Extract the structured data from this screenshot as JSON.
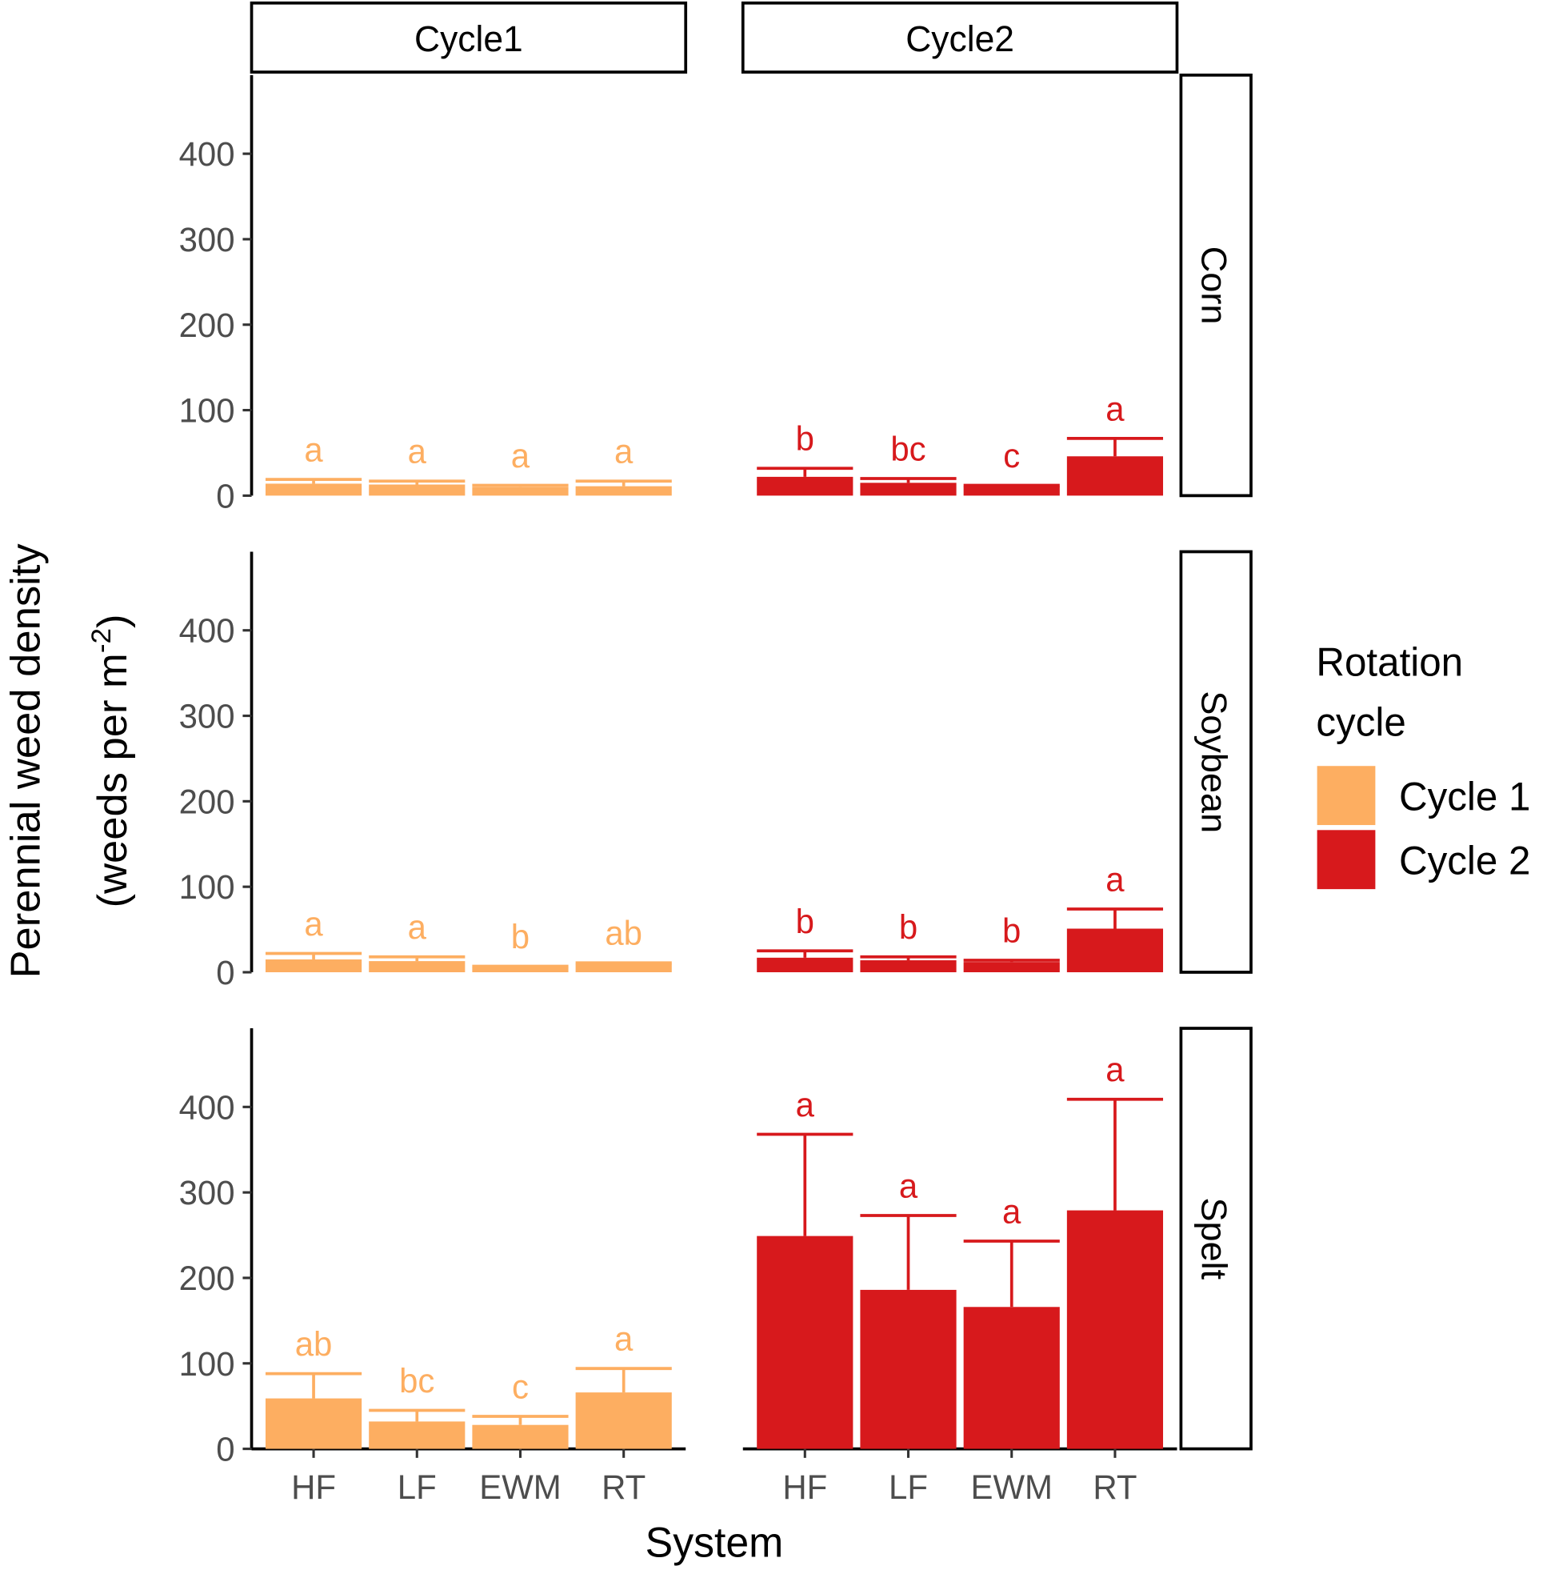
{
  "chart_data": {
    "type": "bar",
    "xlabel": "System",
    "ylabel_line1": "Perennial weed density",
    "ylabel_line2_prefix": "(weeds per m",
    "ylabel_sup": "-2",
    "ylabel_line2_suffix": ")",
    "ylim": [
      0,
      492
    ],
    "yticks": [
      "0",
      "100",
      "200",
      "300",
      "400"
    ],
    "categories": [
      "HF",
      "LF",
      "EWM",
      "RT"
    ],
    "col_facets": [
      "Cycle1",
      "Cycle2"
    ],
    "row_facets": [
      "Corn",
      "Soybean",
      "Spelt"
    ],
    "legend": {
      "title_line1": "Rotation",
      "title_line2": "cycle",
      "placement": "right",
      "items": [
        {
          "label": "Cycle 1",
          "color": "#fdae61"
        },
        {
          "label": "Cycle 2",
          "color": "#d7191c"
        }
      ]
    },
    "panels": [
      {
        "row": "Corn",
        "col": "Cycle1",
        "values": [
          14,
          13,
          10,
          11
        ],
        "upper": [
          19,
          17,
          12,
          17
        ],
        "letters": [
          "a",
          "a",
          "a",
          "a"
        ]
      },
      {
        "row": "Corn",
        "col": "Cycle2",
        "values": [
          22,
          15,
          11,
          46
        ],
        "upper": [
          32,
          20,
          12,
          67
        ],
        "letters": [
          "b",
          "bc",
          "c",
          "a"
        ]
      },
      {
        "row": "Soybean",
        "col": "Cycle1",
        "values": [
          15,
          13,
          6,
          10
        ],
        "upper": [
          22,
          18,
          7,
          11
        ],
        "letters": [
          "a",
          "a",
          "b",
          "ab"
        ]
      },
      {
        "row": "Soybean",
        "col": "Cycle2",
        "values": [
          17,
          14,
          12,
          51
        ],
        "upper": [
          25,
          18,
          14,
          74
        ],
        "letters": [
          "b",
          "b",
          "b",
          "a"
        ]
      },
      {
        "row": "Spelt",
        "col": "Cycle1",
        "values": [
          59,
          32,
          28,
          66
        ],
        "upper": [
          88,
          45,
          38,
          94
        ],
        "letters": [
          "ab",
          "bc",
          "c",
          "a"
        ]
      },
      {
        "row": "Spelt",
        "col": "Cycle2",
        "values": [
          249,
          186,
          166,
          279
        ],
        "upper": [
          368,
          273,
          243,
          409
        ],
        "letters": [
          "a",
          "a",
          "a",
          "a"
        ]
      }
    ]
  }
}
